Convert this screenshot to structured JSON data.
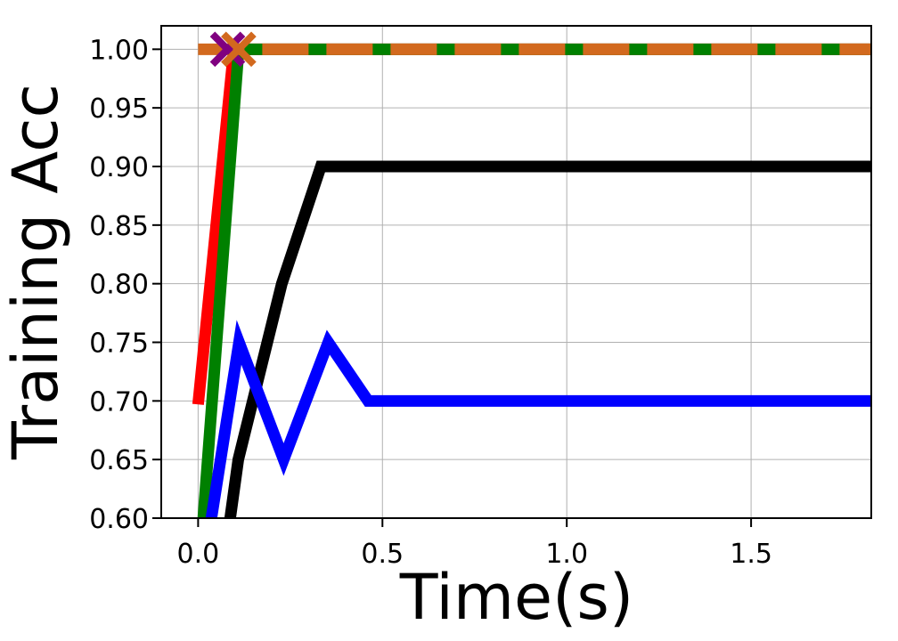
{
  "chart_data": {
    "type": "line",
    "xlabel": "Time(s)",
    "ylabel": "Training Acc",
    "xlim": [
      -0.1,
      1.826
    ],
    "ylim": [
      0.6,
      1.02
    ],
    "xticks": [
      {
        "value": 0,
        "label": "0.0"
      },
      {
        "value": 0.5,
        "label": "0.5"
      },
      {
        "value": 1,
        "label": "1.0"
      },
      {
        "value": 1.5,
        "label": "1.5"
      }
    ],
    "yticks": [
      {
        "value": 0.6,
        "label": "0.60"
      },
      {
        "value": 0.65,
        "label": "0.65"
      },
      {
        "value": 0.7,
        "label": "0.70"
      },
      {
        "value": 0.75,
        "label": "0.75"
      },
      {
        "value": 0.8,
        "label": "0.80"
      },
      {
        "value": 0.85,
        "label": "0.85"
      },
      {
        "value": 0.9,
        "label": "0.90"
      },
      {
        "value": 0.95,
        "label": "0.95"
      },
      {
        "value": 1,
        "label": "1.00"
      }
    ],
    "grid": true,
    "series": [
      {
        "color": "#ff0000",
        "linestyle": "solid",
        "x": [
          0,
          0.097,
          1.826
        ],
        "values": [
          0.697,
          1.0,
          1.0
        ]
      },
      {
        "color": "#008000",
        "linestyle": "solid",
        "x": [
          0.014,
          0.11,
          1.826
        ],
        "values": [
          0.6,
          1.0,
          1.0
        ]
      },
      {
        "color": "#d2691e",
        "linestyle": "dashed",
        "x": [
          0,
          1.826
        ],
        "values": [
          1.0,
          1.0
        ]
      },
      {
        "color": "#000000",
        "linestyle": "solid",
        "x": [
          0.087,
          0.109,
          0.227,
          0.333,
          1.826
        ],
        "values": [
          0.6,
          0.65,
          0.8,
          0.9,
          0.9
        ]
      },
      {
        "color": "#0000ff",
        "linestyle": "solid",
        "x": [
          0.036,
          0.111,
          0.232,
          0.353,
          0.461,
          1.826
        ],
        "values": [
          0.6,
          0.75,
          0.65,
          0.75,
          0.7,
          0.7
        ]
      },
      {
        "color": "#800080",
        "linestyle": "none",
        "marker": "x",
        "x": [
          0.08
        ],
        "values": [
          1.0
        ]
      },
      {
        "color": "#d2691e",
        "linestyle": "none",
        "marker": "x",
        "x": [
          0.11
        ],
        "values": [
          1.0
        ]
      }
    ]
  }
}
